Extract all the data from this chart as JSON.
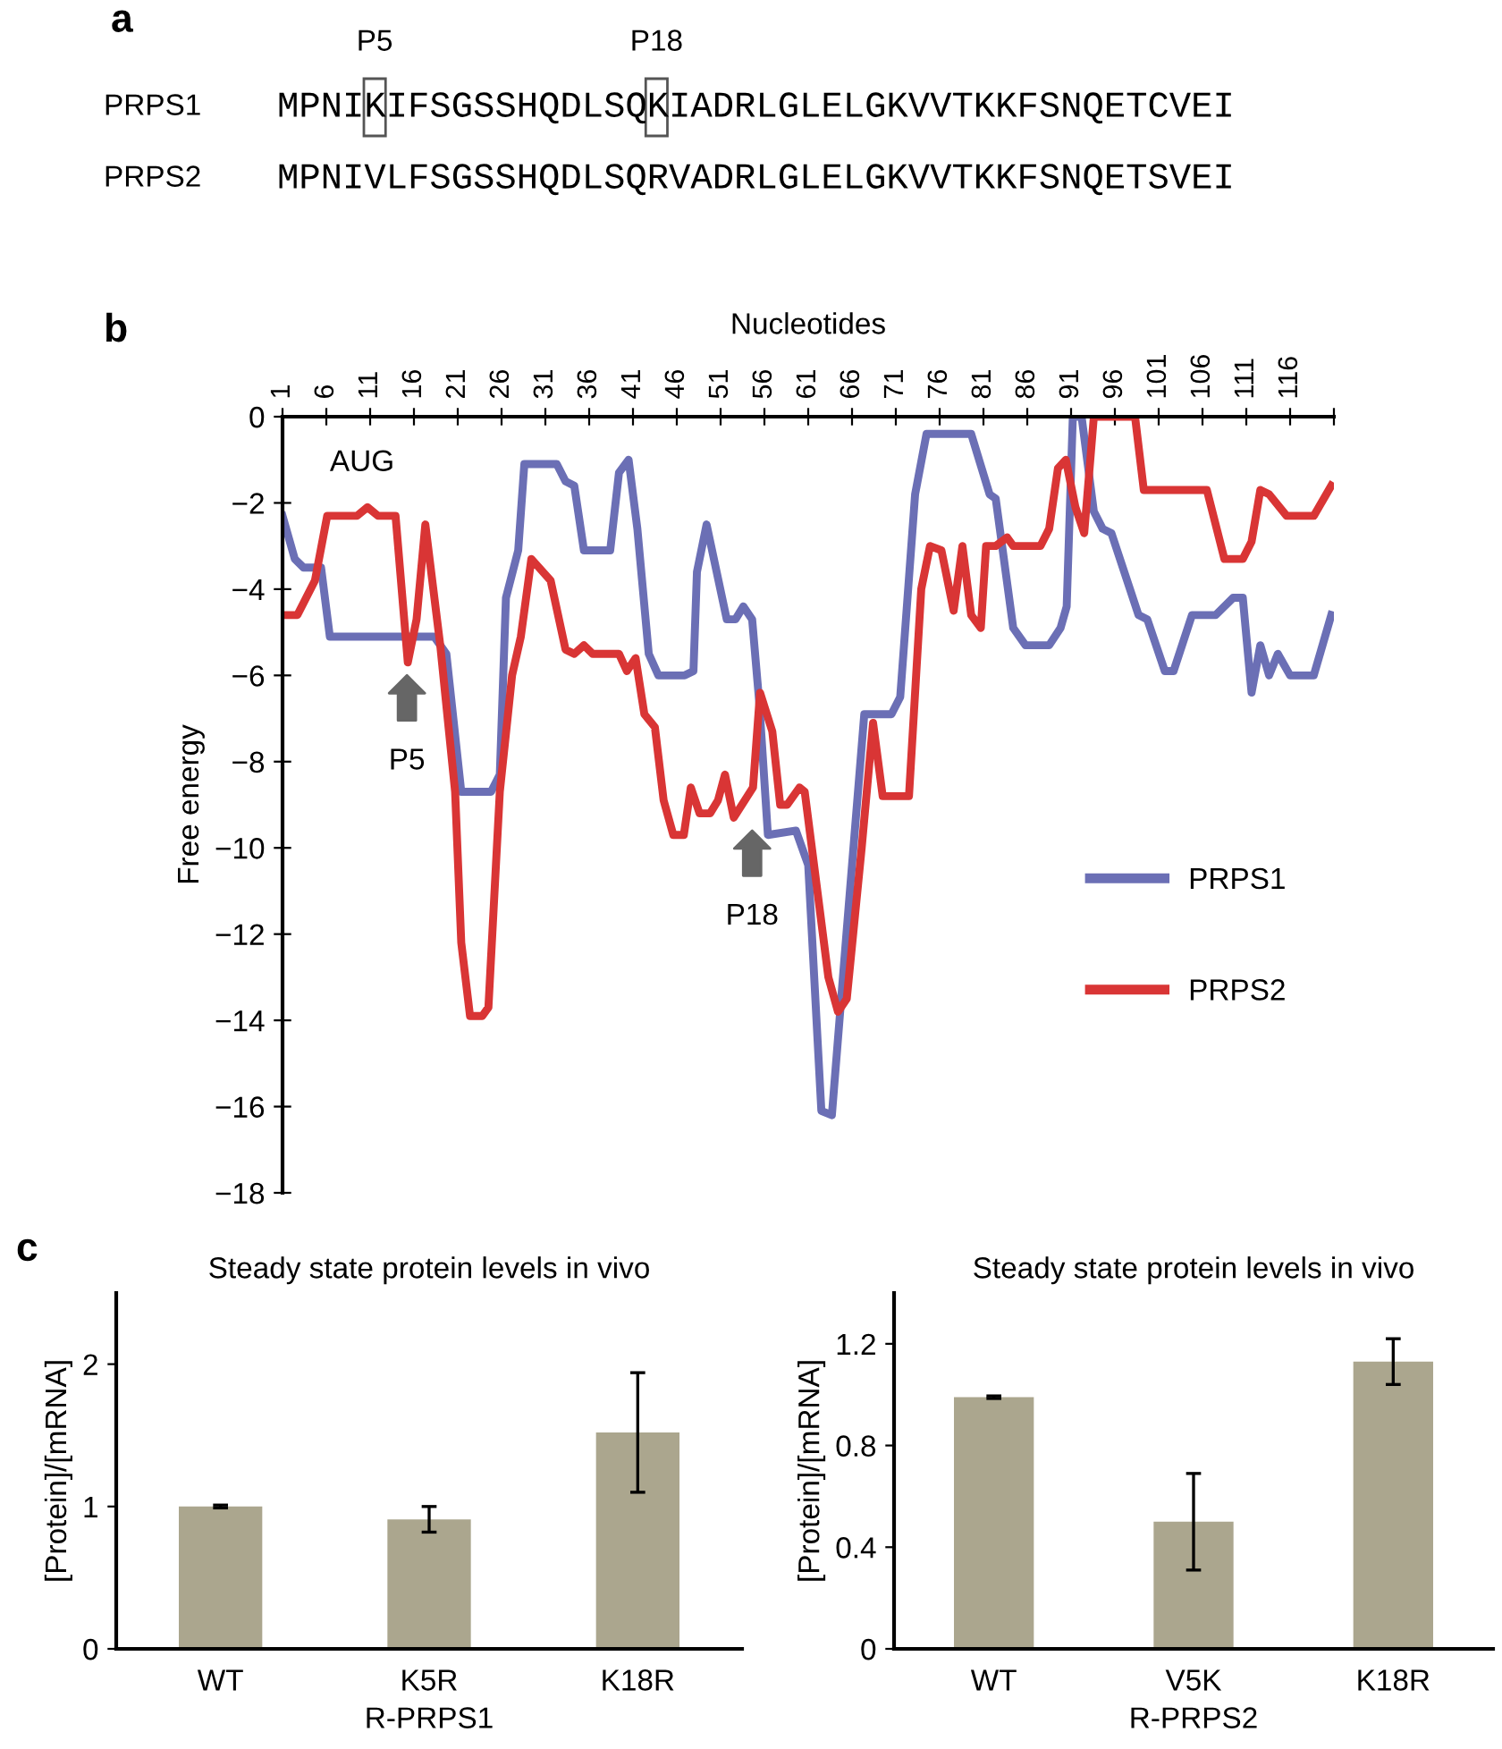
{
  "chart_data": [
    {
      "type": "other",
      "y_categories": [
        "PRPS1",
        "PRPS2"
      ],
      "cell_labels": [
        [
          "MPNIKIFSGSSHQDLSQKIADRLGLELGKVVTKKFSNQETCVEI"
        ],
        [
          "MPNIVLFSGSSHQDLSQRVADRLGLELGKVVTKKFSNQETSVEI"
        ]
      ],
      "annotations": [
        "a",
        "P5",
        "P18"
      ]
    },
    {
      "type": "line",
      "xlabel": "Nucleotides",
      "ylabel": "Free energy",
      "annotations": [
        "b",
        "AUG",
        "P5",
        "P18"
      ],
      "xlim": [
        1,
        121
      ],
      "ylim": [
        -18,
        0
      ],
      "xticks": [
        1,
        6,
        11,
        16,
        21,
        26,
        31,
        36,
        41,
        46,
        51,
        56,
        61,
        66,
        71,
        76,
        81,
        86,
        91,
        96,
        101,
        106,
        111,
        116,
        {
          "value": 121,
          "label": null
        }
      ],
      "yticks": [
        0,
        {
          "value": -2,
          "label": "−2"
        },
        {
          "value": -4,
          "label": "−4"
        },
        {
          "value": -6,
          "label": "−6"
        },
        {
          "value": -8,
          "label": "−8"
        },
        {
          "value": -10,
          "label": "−10"
        },
        {
          "value": -12,
          "label": "−12"
        },
        {
          "value": -14,
          "label": "−14"
        },
        {
          "value": -16,
          "label": "−16"
        },
        {
          "value": -18,
          "label": "−18"
        }
      ],
      "grid": false,
      "legend": "right",
      "marker": "none",
      "line_style": "solid",
      "series": [
        {
          "name": "PRPS1",
          "color": "#6b6fb5",
          "x": [
            1,
            2.4,
            3.4,
            5.4,
            6.4,
            18.3,
            19.7,
            21.4,
            24.8,
            25.8,
            26.5,
            27.9,
            28.6,
            32.3,
            33.3,
            34.3,
            35.4,
            38.4,
            39.4,
            40.5,
            41.5,
            42.8,
            43.9,
            46.9,
            47.9,
            48.3,
            49.4,
            51.7,
            52.7,
            53.6,
            54.6,
            55.4,
            56.4,
            59.6,
            61,
            62.5,
            63.7,
            65,
            67.4,
            70.5,
            71.5,
            73.2,
            74.5,
            79.6,
            81.7,
            82.4,
            84.4,
            85.8,
            88.5,
            89.8,
            90.5,
            91.2,
            92.2,
            93.6,
            94.6,
            95.6,
            98.7,
            99.7,
            101.7,
            102.7,
            104.8,
            107.5,
            109.5,
            110.6,
            111.6,
            112.6,
            113.6,
            114.6,
            116,
            118.7,
            120.7
          ],
          "values": [
            -2.3,
            -3.3,
            -3.5,
            -3.5,
            -5.1,
            -5.1,
            -5.5,
            -8.7,
            -8.7,
            -8.3,
            -4.2,
            -3.1,
            -1.1,
            -1.1,
            -1.5,
            -1.6,
            -3.1,
            -3.1,
            -1.3,
            -1.0,
            -2.6,
            -5.5,
            -6.0,
            -6.0,
            -5.9,
            -3.6,
            -2.5,
            -4.7,
            -4.7,
            -4.4,
            -4.7,
            -6.6,
            -9.7,
            -9.6,
            -10.4,
            -16.1,
            -16.2,
            -12.9,
            -6.9,
            -6.9,
            -6.5,
            -1.8,
            -0.4,
            -0.4,
            -1.8,
            -1.9,
            -4.9,
            -5.3,
            -5.3,
            -4.9,
            -4.4,
            0,
            0,
            -2.2,
            -2.6,
            -2.7,
            -4.6,
            -4.7,
            -5.9,
            -5.9,
            -4.6,
            -4.6,
            -4.2,
            -4.2,
            -6.4,
            -5.3,
            -6.0,
            -5.5,
            -6.0,
            -6.0,
            -4.6
          ]
        },
        {
          "name": "PRPS2",
          "color": "#d93535",
          "x": [
            1,
            2.7,
            3.7,
            4.7,
            6.1,
            9.5,
            10.7,
            11.9,
            13.9,
            15.3,
            16.3,
            17.3,
            19,
            20.7,
            21.4,
            22.4,
            23.8,
            24.5,
            25.8,
            27.2,
            28.2,
            29.4,
            31.6,
            33.3,
            34.3,
            35.4,
            36.4,
            39.4,
            40.3,
            41.3,
            42.3,
            43.5,
            44.5,
            45.6,
            46.8,
            47.6,
            48.6,
            49.8,
            50.7,
            51.5,
            52.5,
            54.7,
            55.5,
            56.9,
            57.8,
            58.6,
            60,
            60.6,
            63.3,
            64.4,
            65.4,
            67.1,
            68.4,
            69.5,
            72.5,
            73.9,
            74.9,
            76.2,
            77.6,
            78.6,
            79.6,
            80.7,
            81.3,
            82.4,
            83.7,
            84.4,
            87.5,
            88.5,
            89.5,
            90.4,
            91.5,
            92.5,
            93.6,
            98.3,
            99.3,
            106.5,
            108.5,
            110.6,
            111.6,
            112.6,
            113.6,
            115.6,
            118.7,
            120.7
          ],
          "values": [
            -4.6,
            -4.6,
            -4.2,
            -3.8,
            -2.3,
            -2.3,
            -2.1,
            -2.3,
            -2.3,
            -5.7,
            -4.7,
            -2.5,
            -5.3,
            -8.7,
            -12.2,
            -13.9,
            -13.9,
            -13.7,
            -8.7,
            -6.0,
            -5.1,
            -3.3,
            -3.8,
            -5.4,
            -5.5,
            -5.3,
            -5.5,
            -5.5,
            -5.9,
            -5.6,
            -6.9,
            -7.2,
            -8.9,
            -9.7,
            -9.7,
            -8.6,
            -9.2,
            -9.2,
            -8.9,
            -8.3,
            -9.3,
            -8.6,
            -6.4,
            -7.3,
            -9.0,
            -9.0,
            -8.6,
            -8.7,
            -13.0,
            -13.8,
            -13.5,
            -10.0,
            -7.1,
            -8.8,
            -8.8,
            -4.0,
            -3.0,
            -3.1,
            -4.5,
            -3.0,
            -4.6,
            -4.9,
            -3.0,
            -3.0,
            -2.8,
            -3.0,
            -3.0,
            -2.6,
            -1.2,
            -1.0,
            -2.1,
            -2.7,
            0,
            0,
            -1.7,
            -1.7,
            -3.3,
            -3.3,
            -2.9,
            -1.7,
            -1.8,
            -2.3,
            -2.3,
            -1.6
          ]
        }
      ]
    },
    {
      "type": "bar",
      "title": "Steady state protein levels in vivo",
      "xlabel": "R-PRPS1",
      "ylabel": "[Protein]/[mRNA]",
      "annotations": [
        "c"
      ],
      "categories": [
        "WT",
        "K5R",
        "K18R"
      ],
      "values": [
        1.0,
        0.91,
        1.52
      ],
      "errors": [
        0.01,
        0.09,
        0.42
      ],
      "color": "#aba68e",
      "ylim": [
        0,
        2.5
      ],
      "yticks": [
        0,
        1,
        2
      ],
      "grid": false
    },
    {
      "type": "bar",
      "title": "Steady state protein levels in vivo",
      "xlabel": "R-PRPS2",
      "ylabel": "[Protein]/[mRNA]",
      "categories": [
        "WT",
        "V5K",
        "K18R"
      ],
      "values": [
        0.99,
        0.5,
        1.13
      ],
      "errors": [
        0.005,
        0.19,
        0.09
      ],
      "color": "#aba68e",
      "ylim": [
        0,
        1.4
      ],
      "yticks": [
        0,
        0.4,
        0.8,
        1.2
      ],
      "grid": false
    }
  ]
}
